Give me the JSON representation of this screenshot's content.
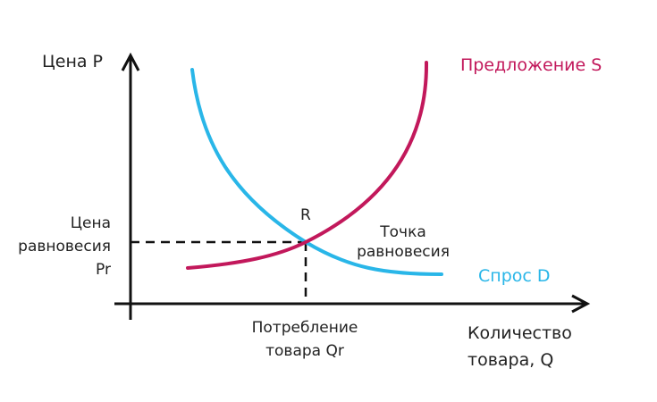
{
  "axes": {
    "y_label": "Цена P",
    "x_label_line1": "Количество",
    "x_label_line2": "товара, Q"
  },
  "supply": {
    "label": "Предложение S",
    "color": "#c2185b"
  },
  "demand": {
    "label": "Спрос D",
    "color": "#29b6e8"
  },
  "equilibrium": {
    "point_label": "R",
    "caption_line1": "Точка",
    "caption_line2": "равновесия",
    "price_line1": "Цена",
    "price_line2": "равновесия",
    "price_line3": "Pr",
    "quantity_line1": "Потребление",
    "quantity_line2": "товара Qr"
  }
}
